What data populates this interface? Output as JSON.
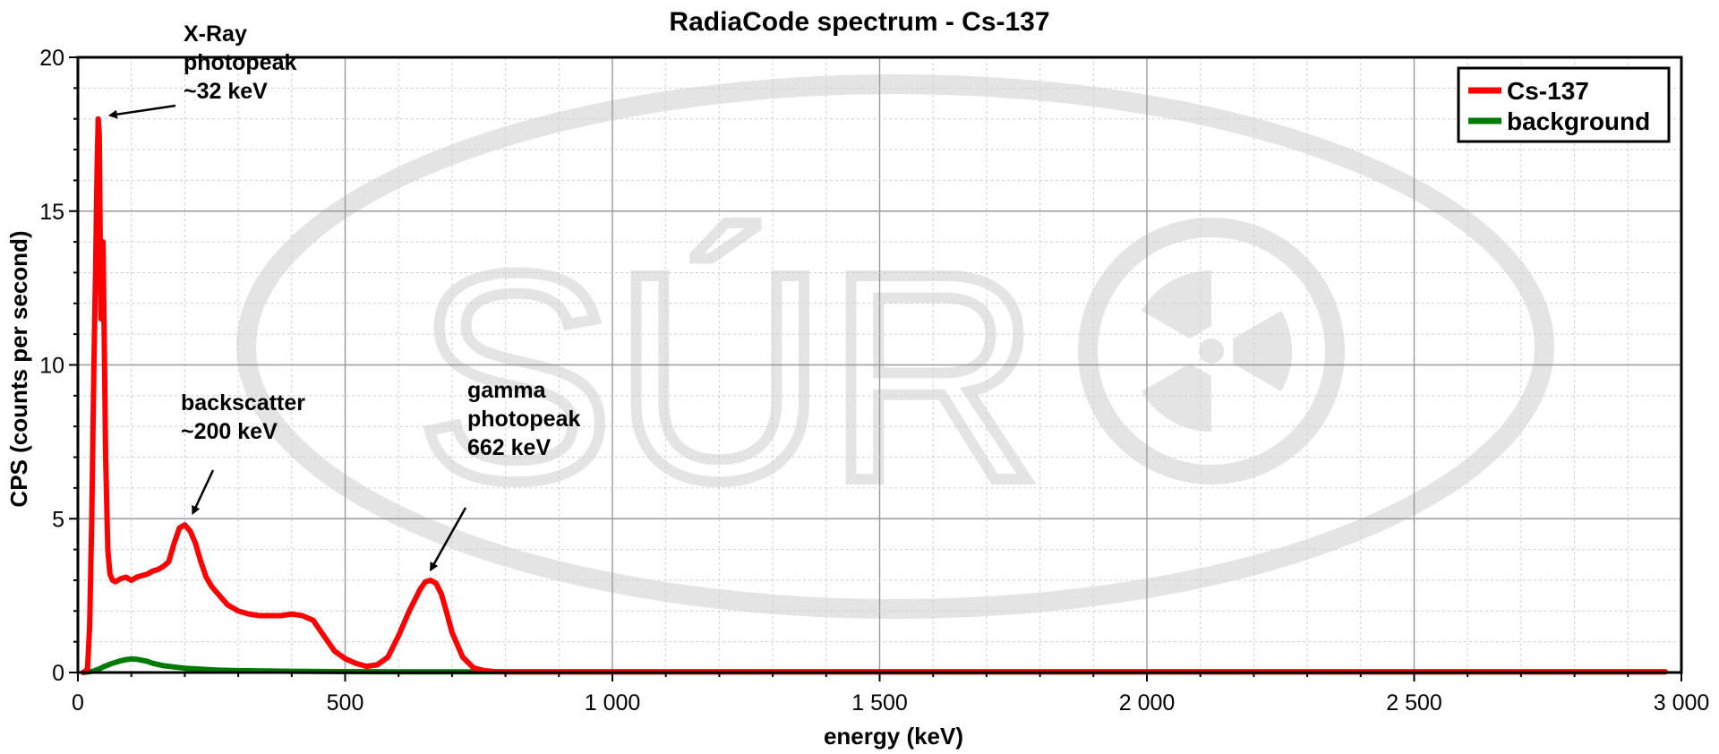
{
  "chart_data": {
    "type": "line",
    "title": "RadiaCode spectrum - Cs-137",
    "xlabel": "energy (keV)",
    "ylabel": "CPS (counts per second)",
    "xlim": [
      0,
      3000
    ],
    "ylim": [
      0,
      20
    ],
    "x_ticks": [
      0,
      500,
      1000,
      1500,
      2000,
      2500,
      3000
    ],
    "x_tick_labels": [
      "0",
      "500",
      "1 000",
      "1 500",
      "2 000",
      "2 500",
      "3 000"
    ],
    "y_ticks": [
      0,
      5,
      10,
      15,
      20
    ],
    "y_tick_labels": [
      "0",
      "5",
      "10",
      "15",
      "20"
    ],
    "grid": true,
    "legend_position": "top-right",
    "series": [
      {
        "name": "Cs-137",
        "color": "#ff0000",
        "x": [
          10,
          18,
          22,
          26,
          30,
          33,
          36,
          38,
          40,
          43,
          47,
          52,
          56,
          60,
          65,
          70,
          80,
          90,
          100,
          110,
          120,
          130,
          140,
          150,
          160,
          170,
          180,
          190,
          200,
          210,
          220,
          230,
          240,
          250,
          260,
          270,
          280,
          300,
          320,
          340,
          360,
          380,
          400,
          420,
          440,
          460,
          480,
          500,
          520,
          540,
          560,
          580,
          600,
          620,
          640,
          650,
          660,
          670,
          680,
          690,
          700,
          720,
          740,
          760,
          780,
          800,
          900,
          1000,
          1500,
          2000,
          2500,
          2970
        ],
        "y": [
          0,
          0.1,
          1.5,
          5,
          10,
          13,
          16.5,
          18,
          17.5,
          11.5,
          14,
          7,
          4,
          3.2,
          3,
          2.95,
          3.05,
          3.1,
          3.0,
          3.1,
          3.15,
          3.2,
          3.3,
          3.35,
          3.45,
          3.6,
          4.2,
          4.7,
          4.8,
          4.6,
          4.2,
          3.6,
          3.1,
          2.8,
          2.6,
          2.4,
          2.2,
          2.0,
          1.9,
          1.85,
          1.85,
          1.85,
          1.9,
          1.85,
          1.7,
          1.2,
          0.7,
          0.45,
          0.3,
          0.2,
          0.25,
          0.5,
          1.2,
          2.0,
          2.7,
          2.95,
          3.0,
          2.9,
          2.55,
          1.95,
          1.3,
          0.5,
          0.15,
          0.06,
          0.03,
          0.02,
          0.02,
          0.02,
          0.02,
          0.02,
          0.02,
          0.02
        ]
      },
      {
        "name": "background",
        "color": "#007a00",
        "x": [
          10,
          20,
          30,
          40,
          50,
          60,
          70,
          80,
          90,
          100,
          110,
          120,
          130,
          140,
          150,
          160,
          180,
          200,
          220,
          240,
          260,
          280,
          300,
          350,
          400,
          500,
          600,
          800,
          1000,
          1500,
          2000,
          2500,
          2970
        ],
        "y": [
          0,
          0.02,
          0.05,
          0.12,
          0.2,
          0.27,
          0.33,
          0.38,
          0.42,
          0.44,
          0.43,
          0.4,
          0.36,
          0.3,
          0.26,
          0.22,
          0.18,
          0.14,
          0.12,
          0.1,
          0.08,
          0.07,
          0.06,
          0.05,
          0.04,
          0.03,
          0.02,
          0.02,
          0.02,
          0.02,
          0.02,
          0.02,
          0.02
        ]
      }
    ],
    "annotations": [
      {
        "lines": [
          "X-Ray",
          "photopeak",
          "~32 keV"
        ],
        "point": [
          40,
          18.2
        ]
      },
      {
        "lines": [
          "backscatter",
          "~200 keV"
        ],
        "point": [
          215,
          5.0
        ]
      },
      {
        "lines": [
          "gamma",
          "photopeak",
          "662 keV"
        ],
        "point": [
          660,
          3.1
        ]
      }
    ]
  },
  "watermark": {
    "text": "SÚR",
    "color": "#e4e4e4"
  }
}
